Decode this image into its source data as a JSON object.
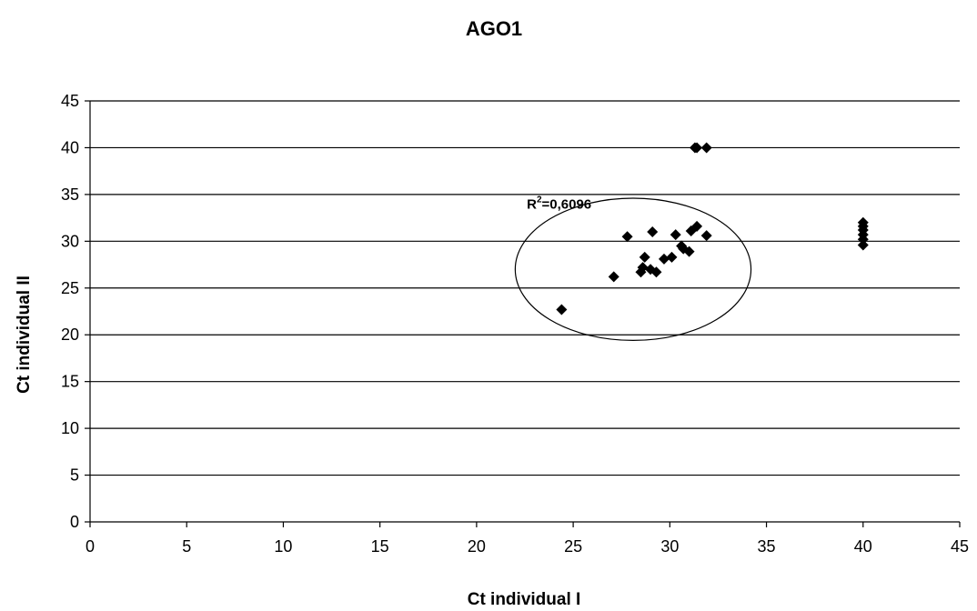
{
  "chart_data": {
    "type": "scatter",
    "title": "AGO1",
    "xlabel": "Ct individual I",
    "ylabel": "Ct individual II",
    "xlim": [
      0,
      45
    ],
    "ylim": [
      0,
      45
    ],
    "xticks": [
      "0",
      "5",
      "10",
      "15",
      "20",
      "25",
      "30",
      "35",
      "40",
      "45"
    ],
    "yticks": [
      "0",
      "5",
      "10",
      "15",
      "20",
      "25",
      "30",
      "35",
      "40",
      "45"
    ],
    "grid": "horizontal",
    "legend": "none",
    "marker_color": "#000000",
    "annotation": {
      "text_base": "R",
      "text_sup": "2",
      "text_rest": "=0,6096"
    },
    "highlight_ellipse": {
      "center": [
        28.1,
        27.0
      ],
      "radius": [
        6.1,
        7.6
      ]
    },
    "points": [
      {
        "x": 24.4,
        "y": 22.7
      },
      {
        "x": 27.1,
        "y": 26.2
      },
      {
        "x": 27.8,
        "y": 30.5
      },
      {
        "x": 28.5,
        "y": 26.7
      },
      {
        "x": 28.6,
        "y": 27.2
      },
      {
        "x": 28.7,
        "y": 28.3
      },
      {
        "x": 29.0,
        "y": 27.0
      },
      {
        "x": 29.1,
        "y": 31.0
      },
      {
        "x": 29.3,
        "y": 26.7
      },
      {
        "x": 29.7,
        "y": 28.1
      },
      {
        "x": 30.1,
        "y": 28.3
      },
      {
        "x": 30.3,
        "y": 30.7
      },
      {
        "x": 30.6,
        "y": 29.5
      },
      {
        "x": 30.7,
        "y": 29.2
      },
      {
        "x": 31.0,
        "y": 28.9
      },
      {
        "x": 31.1,
        "y": 31.1
      },
      {
        "x": 31.4,
        "y": 31.6
      },
      {
        "x": 31.3,
        "y": 40.0
      },
      {
        "x": 31.4,
        "y": 40.0
      },
      {
        "x": 31.9,
        "y": 40.0
      },
      {
        "x": 31.9,
        "y": 30.6
      },
      {
        "x": 40.0,
        "y": 29.6
      },
      {
        "x": 40.0,
        "y": 30.2
      },
      {
        "x": 40.0,
        "y": 30.7
      },
      {
        "x": 40.0,
        "y": 31.2
      },
      {
        "x": 40.0,
        "y": 31.6
      },
      {
        "x": 40.0,
        "y": 32.0
      }
    ]
  }
}
